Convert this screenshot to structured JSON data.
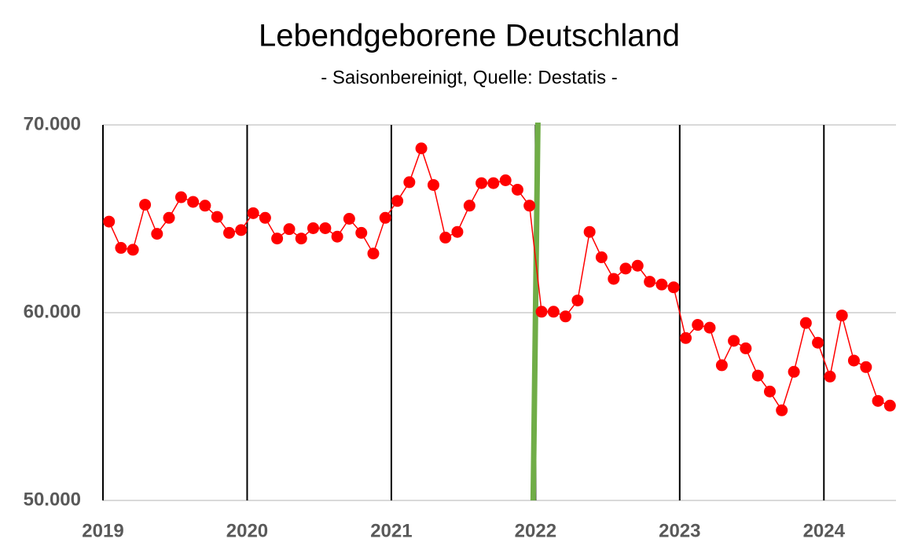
{
  "chart_data": {
    "type": "line",
    "title": "Lebendgeborene Deutschland",
    "subtitle": "- Saisonbereinigt, Quelle: Destatis -",
    "x": [
      2019.042,
      2019.125,
      2019.208,
      2019.292,
      2019.375,
      2019.458,
      2019.542,
      2019.625,
      2019.708,
      2019.792,
      2019.875,
      2019.958,
      2020.042,
      2020.125,
      2020.208,
      2020.292,
      2020.375,
      2020.458,
      2020.542,
      2020.625,
      2020.708,
      2020.792,
      2020.875,
      2020.958,
      2021.042,
      2021.125,
      2021.208,
      2021.292,
      2021.375,
      2021.458,
      2021.542,
      2021.625,
      2021.708,
      2021.792,
      2021.875,
      2021.958,
      2022.042,
      2022.125,
      2022.208,
      2022.292,
      2022.375,
      2022.458,
      2022.542,
      2022.625,
      2022.708,
      2022.792,
      2022.875,
      2022.958,
      2023.042,
      2023.125,
      2023.208,
      2023.292,
      2023.375,
      2023.458,
      2023.542,
      2023.625,
      2023.708,
      2023.792,
      2023.875,
      2023.958,
      2024.042,
      2024.125,
      2024.208,
      2024.292,
      2024.375,
      2024.458
    ],
    "series": [
      {
        "name": "Lebendgeborene",
        "color": "#ff0000",
        "values": [
          64850,
          63450,
          63350,
          65750,
          64200,
          65050,
          66150,
          65900,
          65700,
          65100,
          64250,
          64400,
          65300,
          65050,
          63950,
          64450,
          63950,
          64500,
          64500,
          64050,
          65000,
          64250,
          63150,
          65050,
          65950,
          66950,
          68750,
          66800,
          64000,
          64300,
          65700,
          66900,
          66900,
          67050,
          66550,
          65700,
          60050,
          60050,
          59800,
          60650,
          64300,
          62950,
          61800,
          62350,
          62500,
          61650,
          61500,
          61350,
          58650,
          59350,
          59200,
          57200,
          58500,
          58100,
          56650,
          55800,
          54800,
          56850,
          59450,
          58400,
          56600,
          59850,
          57450,
          57100,
          55300,
          55050
        ]
      }
    ],
    "xlim": [
      2019,
      2024.5
    ],
    "xticks": [
      2019,
      2020,
      2021,
      2022,
      2023,
      2024
    ],
    "ylim": [
      50000,
      70000
    ],
    "yticks": [
      {
        "value": 50000,
        "label": "50.000"
      },
      {
        "value": 60000,
        "label": "60.000"
      },
      {
        "value": 70000,
        "label": "70.000"
      }
    ],
    "grid": true,
    "vlines": [
      {
        "x": 2022,
        "color": "#70ad47"
      }
    ]
  }
}
